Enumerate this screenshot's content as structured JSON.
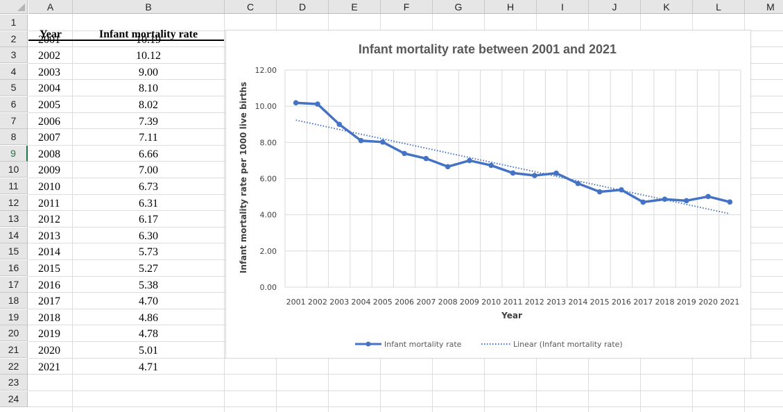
{
  "spreadsheet": {
    "columns": [
      "A",
      "B",
      "C",
      "D",
      "E",
      "F",
      "G",
      "H",
      "I",
      "J",
      "K",
      "L",
      "M"
    ],
    "rows": [
      "1",
      "2",
      "3",
      "4",
      "5",
      "6",
      "7",
      "8",
      "9",
      "10",
      "11",
      "12",
      "13",
      "14",
      "15",
      "16",
      "17",
      "18",
      "19",
      "20",
      "21",
      "22",
      "23",
      "24"
    ],
    "selected_row": "9",
    "header": {
      "a": "Year",
      "b": "Infant mortality rate"
    },
    "data": [
      [
        "2001",
        "10.19"
      ],
      [
        "2002",
        "10.12"
      ],
      [
        "2003",
        "9.00"
      ],
      [
        "2004",
        "8.10"
      ],
      [
        "2005",
        "8.02"
      ],
      [
        "2006",
        "7.39"
      ],
      [
        "2007",
        "7.11"
      ],
      [
        "2008",
        "6.66"
      ],
      [
        "2009",
        "7.00"
      ],
      [
        "2010",
        "6.73"
      ],
      [
        "2011",
        "6.31"
      ],
      [
        "2012",
        "6.17"
      ],
      [
        "2013",
        "6.30"
      ],
      [
        "2014",
        "5.73"
      ],
      [
        "2015",
        "5.27"
      ],
      [
        "2016",
        "5.38"
      ],
      [
        "2017",
        "4.70"
      ],
      [
        "2018",
        "4.86"
      ],
      [
        "2019",
        "4.78"
      ],
      [
        "2020",
        "5.01"
      ],
      [
        "2021",
        "4.71"
      ]
    ]
  },
  "colors": {
    "series": "#4472c4",
    "gridline": "#d9d9d9",
    "header_bg": "#e6e6e6",
    "selected": "#217346"
  },
  "chart_data": {
    "type": "line",
    "title": "Infant mortality rate between 2001 and 2021",
    "xlabel": "Year",
    "ylabel": "Infant mortality rate per 1000 live births",
    "categories": [
      "2001",
      "2002",
      "2003",
      "2004",
      "2005",
      "2006",
      "2007",
      "2008",
      "2009",
      "2010",
      "2011",
      "2012",
      "2013",
      "2014",
      "2015",
      "2016",
      "2017",
      "2018",
      "2019",
      "2020",
      "2021"
    ],
    "series": [
      {
        "name": "Infant mortality rate",
        "values": [
          10.19,
          10.12,
          9.0,
          8.1,
          8.02,
          7.39,
          7.11,
          6.66,
          7.0,
          6.73,
          6.31,
          6.17,
          6.3,
          5.73,
          5.27,
          5.38,
          4.7,
          4.86,
          4.78,
          5.01,
          4.71
        ]
      }
    ],
    "trendline": {
      "name": "Linear (Infant mortality rate)",
      "type": "linear",
      "style": "dotted"
    },
    "ylim": [
      0,
      12
    ],
    "yticks": [
      "0.00",
      "2.00",
      "4.00",
      "6.00",
      "8.00",
      "10.00",
      "12.00"
    ],
    "grid": true,
    "legend_position": "bottom"
  }
}
